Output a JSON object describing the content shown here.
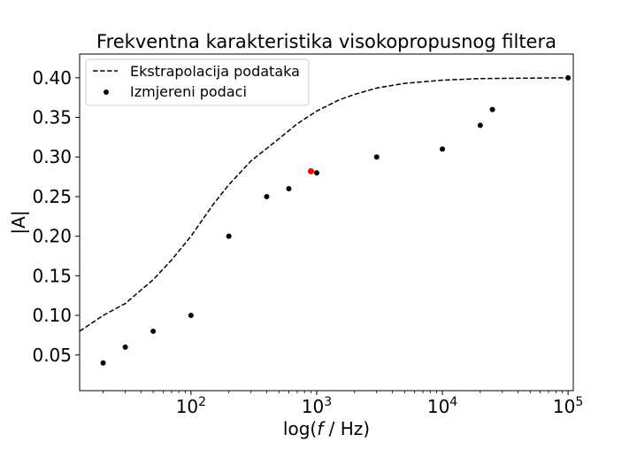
{
  "chart_data": {
    "type": "scatter",
    "title": "Frekventna karakteristika visokopropusnog filtera",
    "xlabel_prefix": "log(",
    "xlabel_var": "f",
    "xlabel_suffix": " / Hz)",
    "ylabel": "|A|",
    "xscale": "log",
    "xlim": [
      13,
      110000
    ],
    "ylim": [
      0.005,
      0.43
    ],
    "x_ticks": [
      {
        "value": 100,
        "base": "10",
        "exp": "2"
      },
      {
        "value": 1000,
        "base": "10",
        "exp": "3"
      },
      {
        "value": 10000,
        "base": "10",
        "exp": "4"
      },
      {
        "value": 100000,
        "base": "10",
        "exp": "5"
      }
    ],
    "y_ticks": [
      {
        "value": 0.05,
        "label": "0.05"
      },
      {
        "value": 0.1,
        "label": "0.10"
      },
      {
        "value": 0.15,
        "label": "0.15"
      },
      {
        "value": 0.2,
        "label": "0.20"
      },
      {
        "value": 0.25,
        "label": "0.25"
      },
      {
        "value": 0.3,
        "label": "0.30"
      },
      {
        "value": 0.35,
        "label": "0.35"
      },
      {
        "value": 0.4,
        "label": "0.40"
      }
    ],
    "legend_position": "top-left",
    "legend": [
      {
        "label": "Ekstrapolacija podataka",
        "style": "dashed-line"
      },
      {
        "label": "Izmjereni podaci",
        "style": "dot"
      }
    ],
    "series": [
      {
        "name": "Izmjereni podaci",
        "kind": "scatter",
        "color": "#000000",
        "points": [
          {
            "x": 20,
            "y": 0.04
          },
          {
            "x": 30,
            "y": 0.06
          },
          {
            "x": 50,
            "y": 0.08
          },
          {
            "x": 100,
            "y": 0.1
          },
          {
            "x": 200,
            "y": 0.2
          },
          {
            "x": 400,
            "y": 0.25
          },
          {
            "x": 600,
            "y": 0.26
          },
          {
            "x": 1000,
            "y": 0.28
          },
          {
            "x": 3000,
            "y": 0.3
          },
          {
            "x": 10000,
            "y": 0.31
          },
          {
            "x": 20000,
            "y": 0.34
          },
          {
            "x": 25000,
            "y": 0.36
          },
          {
            "x": 100000,
            "y": 0.4
          }
        ]
      },
      {
        "name": "Ekstrapolacija podataka",
        "kind": "line",
        "style": "dashed",
        "color": "#000000",
        "points": [
          {
            "x": 13,
            "y": 0.08
          },
          {
            "x": 20,
            "y": 0.1
          },
          {
            "x": 30,
            "y": 0.115
          },
          {
            "x": 50,
            "y": 0.145
          },
          {
            "x": 70,
            "y": 0.17
          },
          {
            "x": 100,
            "y": 0.2
          },
          {
            "x": 150,
            "y": 0.24
          },
          {
            "x": 200,
            "y": 0.265
          },
          {
            "x": 300,
            "y": 0.295
          },
          {
            "x": 500,
            "y": 0.323
          },
          {
            "x": 700,
            "y": 0.342
          },
          {
            "x": 1000,
            "y": 0.358
          },
          {
            "x": 1500,
            "y": 0.372
          },
          {
            "x": 2000,
            "y": 0.379
          },
          {
            "x": 3000,
            "y": 0.387
          },
          {
            "x": 5000,
            "y": 0.393
          },
          {
            "x": 10000,
            "y": 0.397
          },
          {
            "x": 20000,
            "y": 0.399
          },
          {
            "x": 100000,
            "y": 0.4
          }
        ]
      }
    ],
    "highlight_points": [
      {
        "x": 900,
        "y": 0.282,
        "color": "#ff0000"
      }
    ]
  }
}
